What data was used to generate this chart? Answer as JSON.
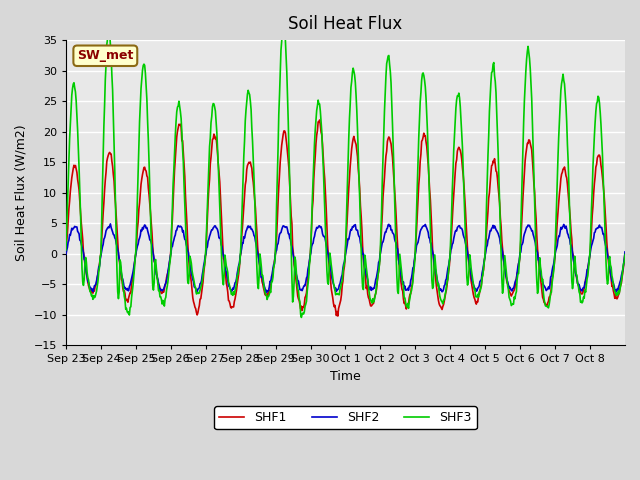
{
  "title": "Soil Heat Flux",
  "ylabel": "Soil Heat Flux (W/m2)",
  "xlabel": "Time",
  "ylim": [
    -15,
    35
  ],
  "bg_color": "#d8d8d8",
  "plot_bg_color": "#e8e8e8",
  "grid_color": "#ffffff",
  "annotation_label": "SW_met",
  "annotation_text_color": "#8b0000",
  "annotation_bg_color": "#ffffcc",
  "annotation_border_color": "#8b6914",
  "legend_labels": [
    "SHF1",
    "SHF2",
    "SHF3"
  ],
  "line_colors": [
    "#cc0000",
    "#0000cc",
    "#00cc00"
  ],
  "x_tick_labels": [
    "Sep 23",
    "Sep 24",
    "Sep 25",
    "Sep 26",
    "Sep 27",
    "Sep 28",
    "Sep 29",
    "Sep 30",
    "Oct 1",
    "Oct 2",
    "Oct 3",
    "Oct 4",
    "Oct 5",
    "Oct 6",
    "Oct 7",
    "Oct 8"
  ],
  "num_cycles": 16,
  "pts_per_day": 48
}
